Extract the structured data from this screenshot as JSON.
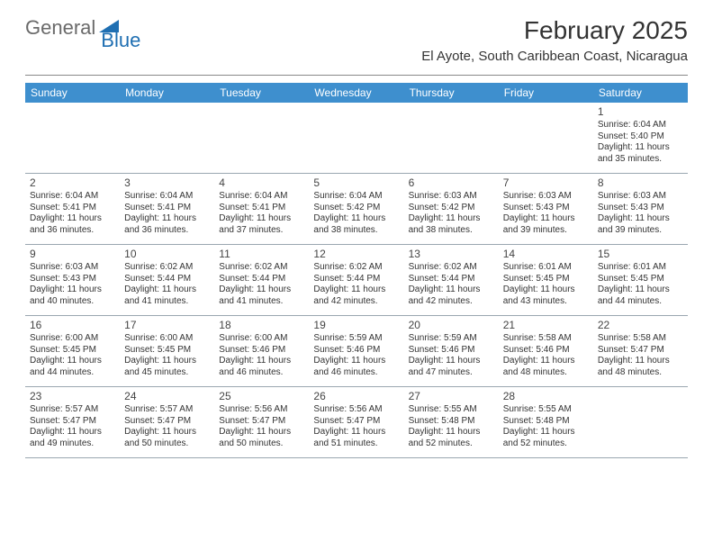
{
  "logo": {
    "general": "General",
    "blue": "Blue"
  },
  "title": "February 2025",
  "location": "El Ayote, South Caribbean Coast, Nicaragua",
  "colors": {
    "header_bar": "#3e8fce",
    "logo_gray": "#6a6a6a",
    "logo_blue": "#1f6fb2",
    "text": "#333333",
    "rule": "#9aa7b0"
  },
  "day_names": [
    "Sunday",
    "Monday",
    "Tuesday",
    "Wednesday",
    "Thursday",
    "Friday",
    "Saturday"
  ],
  "weeks": [
    [
      null,
      null,
      null,
      null,
      null,
      null,
      {
        "n": "1",
        "sr": "6:04 AM",
        "ss": "5:40 PM",
        "dl": "11 hours and 35 minutes."
      }
    ],
    [
      {
        "n": "2",
        "sr": "6:04 AM",
        "ss": "5:41 PM",
        "dl": "11 hours and 36 minutes."
      },
      {
        "n": "3",
        "sr": "6:04 AM",
        "ss": "5:41 PM",
        "dl": "11 hours and 36 minutes."
      },
      {
        "n": "4",
        "sr": "6:04 AM",
        "ss": "5:41 PM",
        "dl": "11 hours and 37 minutes."
      },
      {
        "n": "5",
        "sr": "6:04 AM",
        "ss": "5:42 PM",
        "dl": "11 hours and 38 minutes."
      },
      {
        "n": "6",
        "sr": "6:03 AM",
        "ss": "5:42 PM",
        "dl": "11 hours and 38 minutes."
      },
      {
        "n": "7",
        "sr": "6:03 AM",
        "ss": "5:43 PM",
        "dl": "11 hours and 39 minutes."
      },
      {
        "n": "8",
        "sr": "6:03 AM",
        "ss": "5:43 PM",
        "dl": "11 hours and 39 minutes."
      }
    ],
    [
      {
        "n": "9",
        "sr": "6:03 AM",
        "ss": "5:43 PM",
        "dl": "11 hours and 40 minutes."
      },
      {
        "n": "10",
        "sr": "6:02 AM",
        "ss": "5:44 PM",
        "dl": "11 hours and 41 minutes."
      },
      {
        "n": "11",
        "sr": "6:02 AM",
        "ss": "5:44 PM",
        "dl": "11 hours and 41 minutes."
      },
      {
        "n": "12",
        "sr": "6:02 AM",
        "ss": "5:44 PM",
        "dl": "11 hours and 42 minutes."
      },
      {
        "n": "13",
        "sr": "6:02 AM",
        "ss": "5:44 PM",
        "dl": "11 hours and 42 minutes."
      },
      {
        "n": "14",
        "sr": "6:01 AM",
        "ss": "5:45 PM",
        "dl": "11 hours and 43 minutes."
      },
      {
        "n": "15",
        "sr": "6:01 AM",
        "ss": "5:45 PM",
        "dl": "11 hours and 44 minutes."
      }
    ],
    [
      {
        "n": "16",
        "sr": "6:00 AM",
        "ss": "5:45 PM",
        "dl": "11 hours and 44 minutes."
      },
      {
        "n": "17",
        "sr": "6:00 AM",
        "ss": "5:45 PM",
        "dl": "11 hours and 45 minutes."
      },
      {
        "n": "18",
        "sr": "6:00 AM",
        "ss": "5:46 PM",
        "dl": "11 hours and 46 minutes."
      },
      {
        "n": "19",
        "sr": "5:59 AM",
        "ss": "5:46 PM",
        "dl": "11 hours and 46 minutes."
      },
      {
        "n": "20",
        "sr": "5:59 AM",
        "ss": "5:46 PM",
        "dl": "11 hours and 47 minutes."
      },
      {
        "n": "21",
        "sr": "5:58 AM",
        "ss": "5:46 PM",
        "dl": "11 hours and 48 minutes."
      },
      {
        "n": "22",
        "sr": "5:58 AM",
        "ss": "5:47 PM",
        "dl": "11 hours and 48 minutes."
      }
    ],
    [
      {
        "n": "23",
        "sr": "5:57 AM",
        "ss": "5:47 PM",
        "dl": "11 hours and 49 minutes."
      },
      {
        "n": "24",
        "sr": "5:57 AM",
        "ss": "5:47 PM",
        "dl": "11 hours and 50 minutes."
      },
      {
        "n": "25",
        "sr": "5:56 AM",
        "ss": "5:47 PM",
        "dl": "11 hours and 50 minutes."
      },
      {
        "n": "26",
        "sr": "5:56 AM",
        "ss": "5:47 PM",
        "dl": "11 hours and 51 minutes."
      },
      {
        "n": "27",
        "sr": "5:55 AM",
        "ss": "5:48 PM",
        "dl": "11 hours and 52 minutes."
      },
      {
        "n": "28",
        "sr": "5:55 AM",
        "ss": "5:48 PM",
        "dl": "11 hours and 52 minutes."
      },
      null
    ]
  ],
  "labels": {
    "sunrise": "Sunrise:",
    "sunset": "Sunset:",
    "daylight": "Daylight:"
  }
}
